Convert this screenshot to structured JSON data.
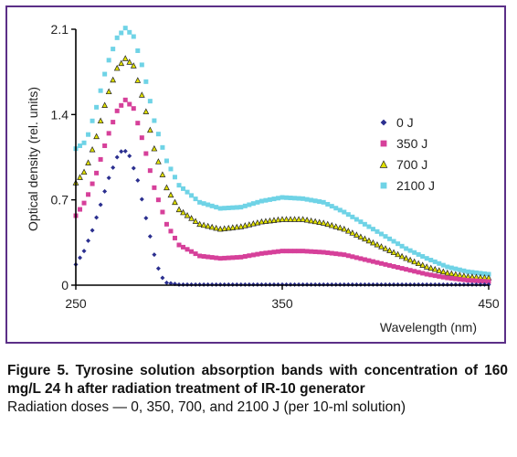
{
  "figure": {
    "caption_title": "Figure 5. Tyrosine solution absorption bands with concentration of 160 mg/L 24 h after radiation treatment of IR-10 generator",
    "caption_note": "Radiation doses — 0, 350, 700, and 2100 J (per 10-ml solution)"
  },
  "colors": {
    "frame": "#5b2f87",
    "s0": "#2b2f8f",
    "s350": "#d6409a",
    "s700": "#e0e000",
    "s2100": "#6fd3e6"
  },
  "chart_data": {
    "type": "scatter",
    "title": "",
    "xlabel": "Wavelength (nm)",
    "ylabel": "Optical density (rel. units)",
    "xlim": [
      250,
      450
    ],
    "ylim": [
      0,
      2.1
    ],
    "x_ticks": [
      "250",
      "350",
      "450"
    ],
    "y_ticks": [
      "0",
      "0.7",
      "1.4",
      "2.1"
    ],
    "x_step": 2,
    "legend_position": "right-center",
    "series": [
      {
        "name": "0 J",
        "marker": "diamond",
        "color": "#2b2f8f",
        "points": [
          [
            250,
            0.17
          ],
          [
            254,
            0.28
          ],
          [
            258,
            0.45
          ],
          [
            262,
            0.66
          ],
          [
            266,
            0.88
          ],
          [
            270,
            1.05
          ],
          [
            273,
            1.12
          ],
          [
            276,
            1.06
          ],
          [
            280,
            0.86
          ],
          [
            284,
            0.55
          ],
          [
            288,
            0.25
          ],
          [
            291,
            0.08
          ],
          [
            294,
            0.02
          ],
          [
            300,
            0.005
          ],
          [
            360,
            0.005
          ],
          [
            450,
            0.005
          ]
        ]
      },
      {
        "name": "350 J",
        "marker": "square",
        "color": "#d6409a",
        "points": [
          [
            250,
            0.57
          ],
          [
            255,
            0.7
          ],
          [
            260,
            0.92
          ],
          [
            265,
            1.2
          ],
          [
            270,
            1.43
          ],
          [
            274,
            1.52
          ],
          [
            278,
            1.45
          ],
          [
            283,
            1.15
          ],
          [
            288,
            0.8
          ],
          [
            294,
            0.5
          ],
          [
            300,
            0.33
          ],
          [
            310,
            0.24
          ],
          [
            320,
            0.22
          ],
          [
            330,
            0.23
          ],
          [
            340,
            0.26
          ],
          [
            350,
            0.28
          ],
          [
            360,
            0.28
          ],
          [
            370,
            0.27
          ],
          [
            380,
            0.25
          ],
          [
            390,
            0.21
          ],
          [
            400,
            0.17
          ],
          [
            410,
            0.13
          ],
          [
            420,
            0.09
          ],
          [
            430,
            0.06
          ],
          [
            440,
            0.04
          ],
          [
            450,
            0.03
          ]
        ]
      },
      {
        "name": "700 J",
        "marker": "triangle",
        "color": "#e0e000",
        "points": [
          [
            250,
            0.84
          ],
          [
            255,
            0.95
          ],
          [
            260,
            1.22
          ],
          [
            265,
            1.54
          ],
          [
            270,
            1.78
          ],
          [
            274,
            1.86
          ],
          [
            278,
            1.8
          ],
          [
            283,
            1.5
          ],
          [
            288,
            1.12
          ],
          [
            294,
            0.8
          ],
          [
            300,
            0.62
          ],
          [
            310,
            0.5
          ],
          [
            320,
            0.46
          ],
          [
            330,
            0.48
          ],
          [
            340,
            0.52
          ],
          [
            350,
            0.54
          ],
          [
            360,
            0.54
          ],
          [
            370,
            0.51
          ],
          [
            380,
            0.46
          ],
          [
            390,
            0.38
          ],
          [
            400,
            0.3
          ],
          [
            410,
            0.22
          ],
          [
            420,
            0.15
          ],
          [
            430,
            0.1
          ],
          [
            440,
            0.07
          ],
          [
            450,
            0.06
          ]
        ]
      },
      {
        "name": "2100 J",
        "marker": "square",
        "color": "#6fd3e6",
        "points": [
          [
            250,
            1.12
          ],
          [
            255,
            1.18
          ],
          [
            260,
            1.46
          ],
          [
            265,
            1.8
          ],
          [
            270,
            2.03
          ],
          [
            274,
            2.11
          ],
          [
            278,
            2.04
          ],
          [
            283,
            1.75
          ],
          [
            288,
            1.35
          ],
          [
            294,
            1.02
          ],
          [
            300,
            0.82
          ],
          [
            310,
            0.68
          ],
          [
            320,
            0.63
          ],
          [
            330,
            0.64
          ],
          [
            340,
            0.69
          ],
          [
            350,
            0.72
          ],
          [
            360,
            0.71
          ],
          [
            370,
            0.68
          ],
          [
            380,
            0.6
          ],
          [
            390,
            0.5
          ],
          [
            400,
            0.4
          ],
          [
            410,
            0.3
          ],
          [
            420,
            0.22
          ],
          [
            430,
            0.15
          ],
          [
            440,
            0.11
          ],
          [
            450,
            0.09
          ]
        ]
      }
    ]
  }
}
